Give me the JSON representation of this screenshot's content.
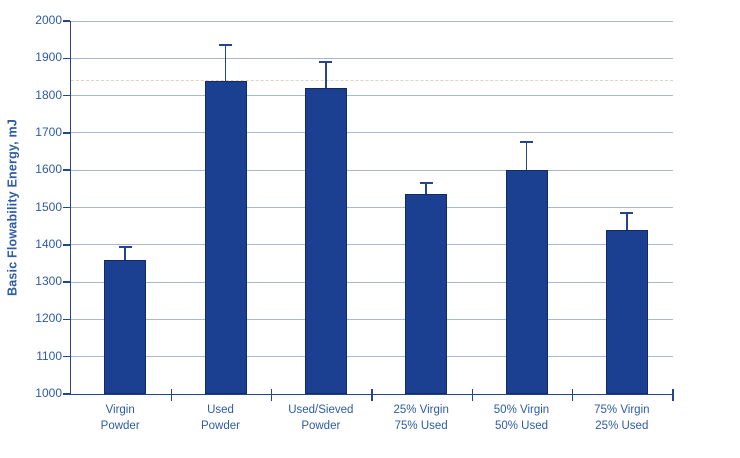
{
  "chart_data": {
    "type": "bar",
    "title": "",
    "xlabel": "",
    "ylabel": "Basic Flowability Energy, mJ",
    "ylim": [
      1000,
      2000
    ],
    "ytick_step": 100,
    "grid": true,
    "legend": "none",
    "categories": [
      "Virgin\nPowder",
      "Used\nPowder",
      "Used/Sieved\nPowder",
      "25% Virgin\n75% Used",
      "50% Virgin\n50% Used",
      "75% Virgin\n25% Used"
    ],
    "values": [
      1360,
      1840,
      1820,
      1535,
      1600,
      1440
    ],
    "error_plus": [
      35,
      95,
      70,
      30,
      75,
      45
    ],
    "reference_line": 1841,
    "colors": {
      "bar_fill": "#1c4091",
      "bar_border": "#122a66",
      "axis": "#24458c",
      "grid": "#aab8d0",
      "text": "#2d5ba6",
      "error": "#24458c",
      "reference": "#d4cab0"
    }
  }
}
